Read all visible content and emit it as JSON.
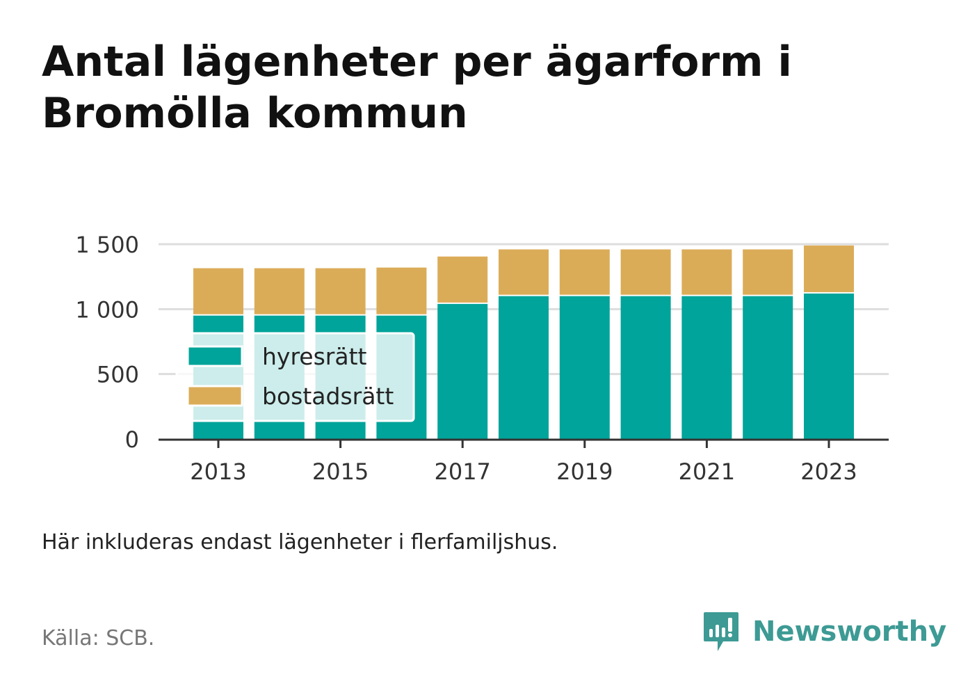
{
  "title": "Antal lägenheter per ägarform i Bromölla kommun",
  "note": "Här inkluderas endast lägenheter i flerfamiljshus.",
  "source": "Källa: SCB.",
  "brand": {
    "name": "Newsworthy",
    "icon": "newsworthy-logo-icon",
    "color": "#3d9a94"
  },
  "chart_data": {
    "type": "bar",
    "stacked": true,
    "categories": [
      2013,
      2014,
      2015,
      2016,
      2017,
      2018,
      2019,
      2020,
      2021,
      2022,
      2023
    ],
    "x_tick_labels": [
      "2013",
      "2015",
      "2017",
      "2019",
      "2021",
      "2023"
    ],
    "series": [
      {
        "name": "hyresrätt",
        "color": "#00a49a",
        "values": [
          950,
          950,
          950,
          950,
          1040,
          1100,
          1100,
          1100,
          1100,
          1100,
          1120
        ]
      },
      {
        "name": "bostadsrätt",
        "color": "#dbac58",
        "values": [
          365,
          365,
          365,
          370,
          365,
          360,
          360,
          360,
          360,
          360,
          370
        ]
      }
    ],
    "ylim": [
      0,
      1500
    ],
    "y_ticks": [
      0,
      500,
      1000,
      1500
    ],
    "y_tick_labels": [
      "0",
      "500",
      "1 000",
      "1 500"
    ],
    "grid": true,
    "legend_position": "bottom-left inside"
  }
}
